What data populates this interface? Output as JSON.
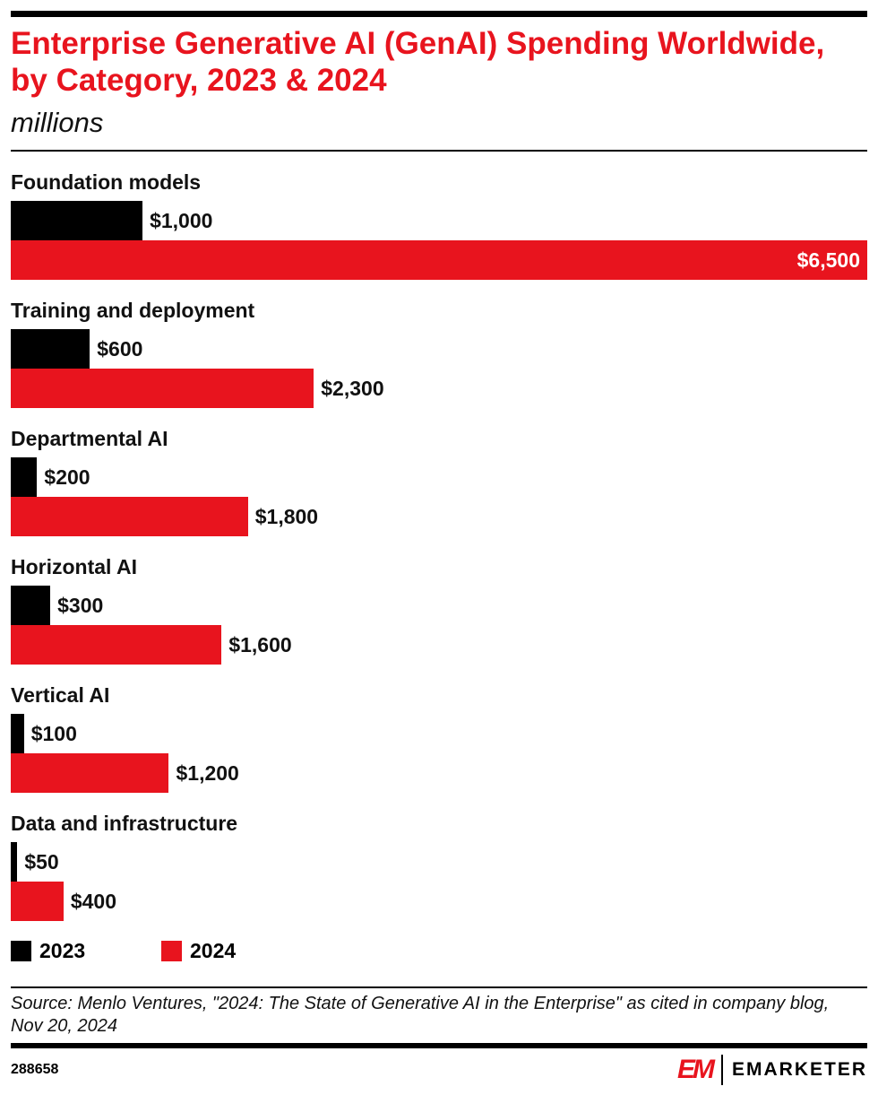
{
  "header": {
    "title": "Enterprise Generative AI (GenAI) Spending Worldwide, by Category, 2023 & 2024",
    "subtitle": "millions"
  },
  "chart_data": {
    "type": "bar",
    "orientation": "horizontal",
    "title": "Enterprise Generative AI (GenAI) Spending Worldwide, by Category, 2023 & 2024",
    "subtitle": "millions",
    "categories": [
      "Foundation models",
      "Training and deployment",
      "Departmental AI",
      "Horizontal AI",
      "Vertical AI",
      "Data and infrastructure"
    ],
    "series": [
      {
        "name": "2023",
        "color": "#000000",
        "values": [
          1000,
          600,
          200,
          300,
          100,
          50
        ],
        "labels": [
          "$1,000",
          "$600",
          "$200",
          "$300",
          "$100",
          "$50"
        ]
      },
      {
        "name": "2024",
        "color": "#e8141e",
        "values": [
          6500,
          2300,
          1800,
          1600,
          1200,
          400
        ],
        "labels": [
          "$6,500",
          "$2,300",
          "$1,800",
          "$1,600",
          "$1,200",
          "$400"
        ]
      }
    ],
    "xlim": [
      0,
      6500
    ],
    "grid": false,
    "legend": "bottom-left"
  },
  "footer": {
    "source": "Source: Menlo Ventures, \"2024: The State of Generative AI in the Enterprise\" as cited in company blog, Nov 20, 2024",
    "id": "288658",
    "brand": "EMARKETER",
    "logo_mark": "EM"
  }
}
